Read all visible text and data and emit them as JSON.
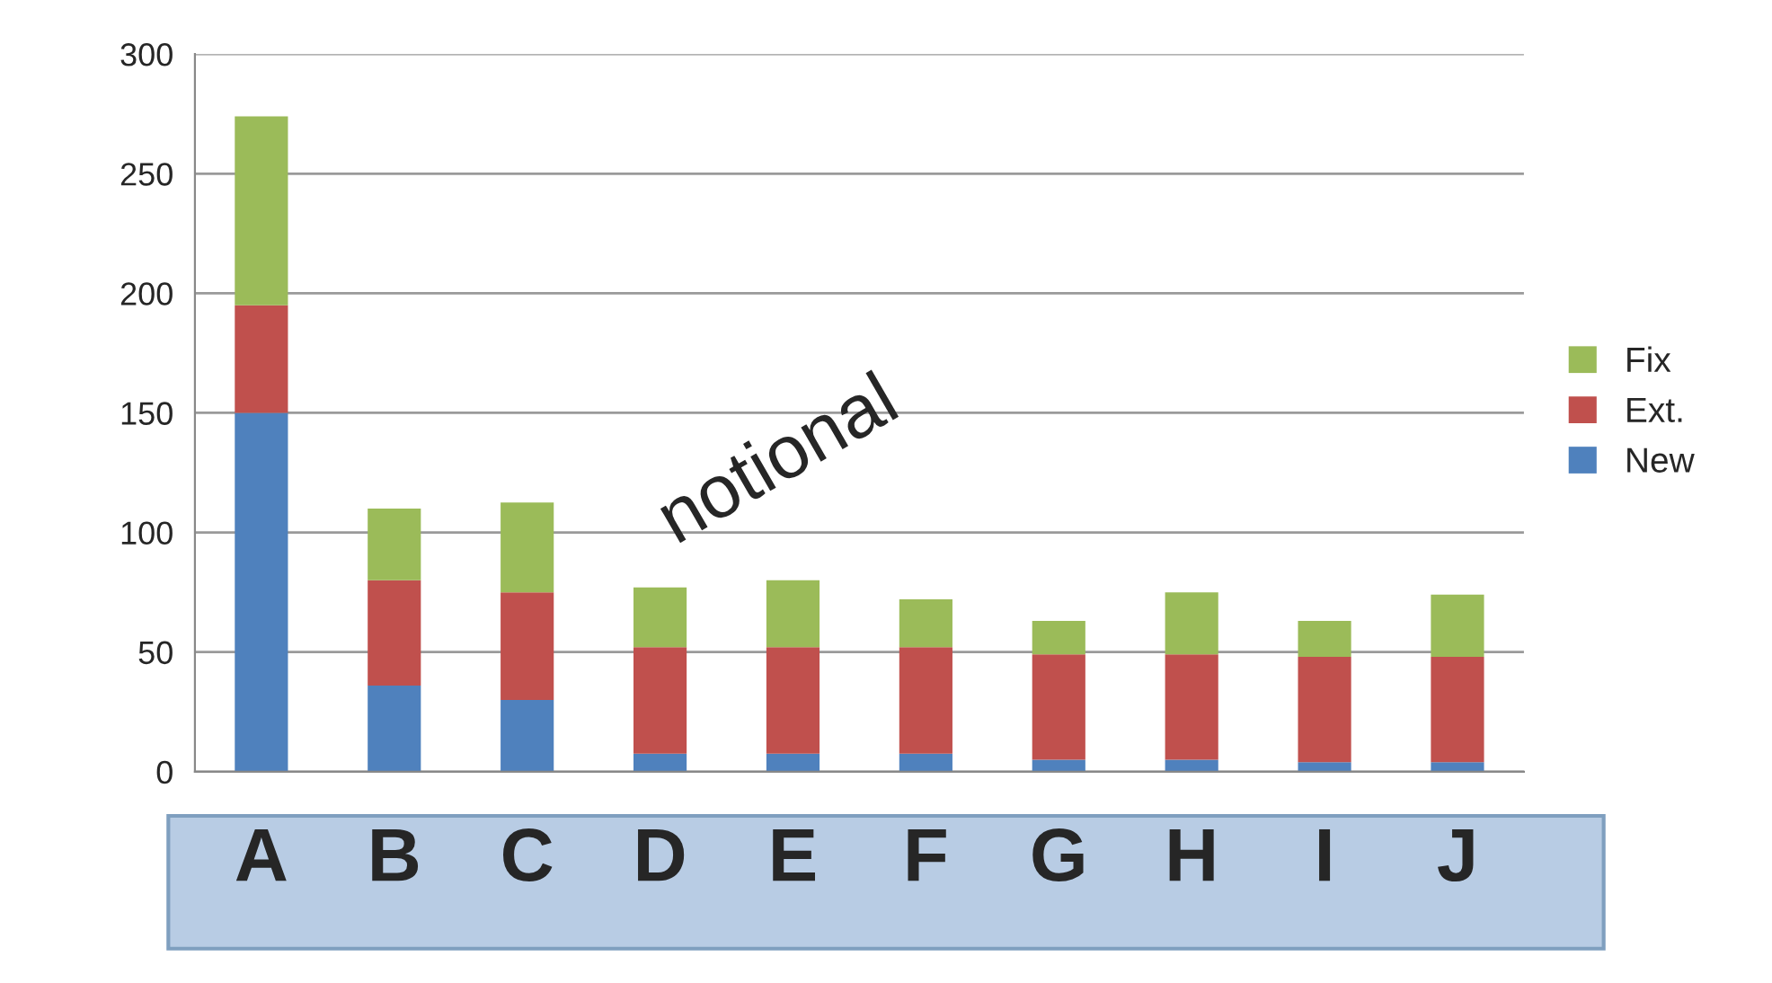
{
  "chart_data": {
    "type": "bar",
    "stacked": true,
    "categories": [
      "A",
      "B",
      "C",
      "D",
      "E",
      "F",
      "G",
      "H",
      "I",
      "J"
    ],
    "series": [
      {
        "name": "New",
        "color": "#4f81bd",
        "values": [
          150,
          36,
          30,
          7.5,
          7.5,
          7.5,
          5,
          5,
          4,
          4
        ]
      },
      {
        "name": "Ext.",
        "color": "#c0504d",
        "values": [
          45,
          44,
          45,
          44.5,
          44.5,
          44.5,
          44,
          44,
          44,
          44
        ]
      },
      {
        "name": "Fix",
        "color": "#9bbb59",
        "values": [
          79,
          30,
          37.5,
          25,
          28,
          20,
          14,
          26,
          15,
          26
        ]
      }
    ],
    "ylim": [
      0,
      300
    ],
    "yticks": [
      0,
      50,
      100,
      150,
      200,
      250,
      300
    ],
    "grid": "y",
    "legend": "right",
    "annotations": [
      "notional"
    ]
  }
}
